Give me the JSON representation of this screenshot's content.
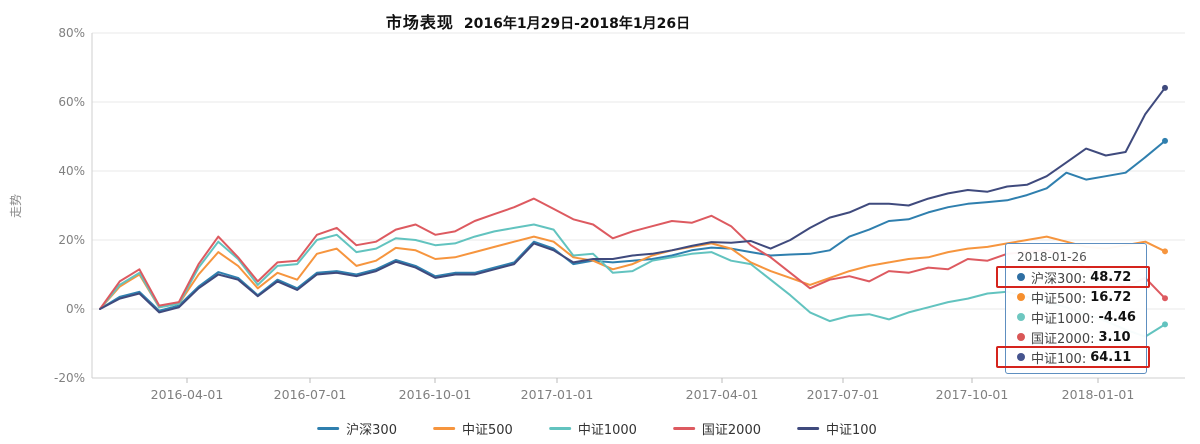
{
  "title": {
    "main": "市场表现",
    "range": "2016年1月29日-2018年1月26日"
  },
  "y_axis": {
    "title": "走势",
    "tick_labels": [
      "80%",
      "60%",
      "40%",
      "20%",
      "0%",
      "-20%"
    ]
  },
  "x_axis": {
    "tick_labels": [
      "2016-04-01",
      "2016-07-01",
      "2016-10-01",
      "2017-01-01",
      "2017-04-01",
      "2017-07-01",
      "2017-10-01",
      "2018-01-01"
    ]
  },
  "tooltip": {
    "date": "2018-01-26",
    "rows": [
      {
        "name": "沪深300",
        "value": "48.72",
        "color": "#2f6fa3",
        "highlighted": true
      },
      {
        "name": "中证500",
        "value": "16.72",
        "color": "#f68f2e",
        "highlighted": false
      },
      {
        "name": "中证1000",
        "value": "-4.46",
        "color": "#6ec7c0",
        "highlighted": false
      },
      {
        "name": "国证2000",
        "value": "3.10",
        "color": "#d95757",
        "highlighted": false
      },
      {
        "name": "中证100",
        "value": "64.11",
        "color": "#46548e",
        "highlighted": true
      }
    ]
  },
  "annotations": {
    "highlight_color": "#d5241d",
    "highlighted_rows": [
      "沪深300",
      "中证100"
    ]
  },
  "chart_data": {
    "type": "line",
    "title": "市场表现 2016年1月29日-2018年1月26日",
    "ylabel": "走势",
    "ylim": [
      -20,
      80
    ],
    "y_ticks_pct": [
      80,
      60,
      40,
      20,
      0,
      -20
    ],
    "x_start": "2016-01-29",
    "x_end": "2018-01-26",
    "x_tick_labels": [
      "2016-04-01",
      "2016-07-01",
      "2016-10-01",
      "2017-01-01",
      "2017-04-01",
      "2017-07-01",
      "2017-10-01",
      "2018-01-01"
    ],
    "grid": true,
    "legend_position": "bottom",
    "series": [
      {
        "name": "沪深300",
        "color": "#2f7fae",
        "values": [
          0,
          3.5,
          5,
          -0.5,
          1,
          6.5,
          10.7,
          9,
          4,
          8.5,
          6,
          10.5,
          11,
          10,
          11.5,
          14.2,
          12.5,
          9.5,
          10.5,
          10.5,
          12,
          13.5,
          19.5,
          17.5,
          13,
          14,
          13.5,
          14,
          14.5,
          15.5,
          17,
          17.8,
          17.5,
          16.5,
          15.5,
          15.8,
          16,
          17,
          21,
          23,
          25.5,
          26,
          28,
          29.5,
          30.5,
          31,
          31.5,
          33,
          35,
          39.5,
          37.5,
          38.5,
          39.5,
          44,
          48.72
        ]
      },
      {
        "name": "中证500",
        "color": "#f6953e",
        "values": [
          0,
          6.5,
          10,
          0.5,
          1.5,
          10,
          16.5,
          12.5,
          6,
          10.5,
          8.5,
          16,
          17.5,
          12.5,
          14,
          17.7,
          17,
          14.5,
          15,
          16.5,
          18,
          19.5,
          21,
          19.5,
          15,
          14,
          11.5,
          13,
          15.5,
          17,
          18,
          19,
          17.5,
          13.5,
          11,
          9,
          7,
          9,
          11,
          12.5,
          13.5,
          14.5,
          15,
          16.5,
          17.5,
          18,
          19,
          20,
          21,
          19.5,
          18,
          17.5,
          18.5,
          19.5,
          16.72
        ]
      },
      {
        "name": "中证1000",
        "color": "#62c3bf",
        "values": [
          0,
          7,
          10.5,
          0.5,
          1.5,
          12,
          19.5,
          14.5,
          7,
          12.5,
          13,
          20,
          21.5,
          16.5,
          17.5,
          20.5,
          20,
          18.5,
          19,
          21,
          22.5,
          23.5,
          24.5,
          23,
          15.5,
          16,
          10.5,
          11,
          14,
          15,
          16,
          16.5,
          14,
          13,
          8.5,
          4,
          -1,
          -3.5,
          -2,
          -1.5,
          -3,
          -1,
          0.5,
          2,
          3,
          4.5,
          5,
          3.5,
          2,
          0.5,
          -1.5,
          -3.5,
          -6,
          -8,
          -4.46
        ]
      },
      {
        "name": "国证2000",
        "color": "#dd5a60",
        "values": [
          0,
          8,
          11.5,
          1,
          2,
          13,
          21,
          15,
          8,
          13.5,
          14,
          21.5,
          23.5,
          18.5,
          19.5,
          23,
          24.5,
          21.5,
          22.5,
          25.5,
          27.5,
          29.5,
          32,
          29,
          26,
          24.5,
          20.5,
          22.5,
          24,
          25.5,
          25,
          27,
          24,
          18.5,
          15,
          10.5,
          6,
          8.5,
          9.5,
          8,
          11,
          10.5,
          12,
          11.5,
          14.5,
          14,
          16,
          16.5,
          17,
          15.5,
          12,
          9,
          6.5,
          9,
          3.1
        ]
      },
      {
        "name": "中证100",
        "color": "#3f4a7d",
        "values": [
          0,
          3,
          4.5,
          -1,
          0.5,
          6,
          10,
          8.5,
          3.7,
          8,
          5.5,
          10,
          10.5,
          9.5,
          11,
          13.7,
          12,
          9,
          10,
          10,
          11.5,
          13,
          19,
          17,
          13.5,
          14.5,
          14.5,
          15.5,
          16,
          17,
          18.3,
          19.4,
          19.2,
          19.7,
          17.5,
          20,
          23.5,
          26.5,
          28,
          30.5,
          30.5,
          30,
          32,
          33.5,
          34.5,
          34,
          35.5,
          36,
          38.5,
          42.5,
          46.5,
          44.5,
          45.5,
          56.5,
          64.11
        ]
      }
    ],
    "final_values": {
      "沪深300": 48.72,
      "中证500": 16.72,
      "中证1000": -4.46,
      "国证2000": 3.1,
      "中证100": 64.11
    }
  }
}
